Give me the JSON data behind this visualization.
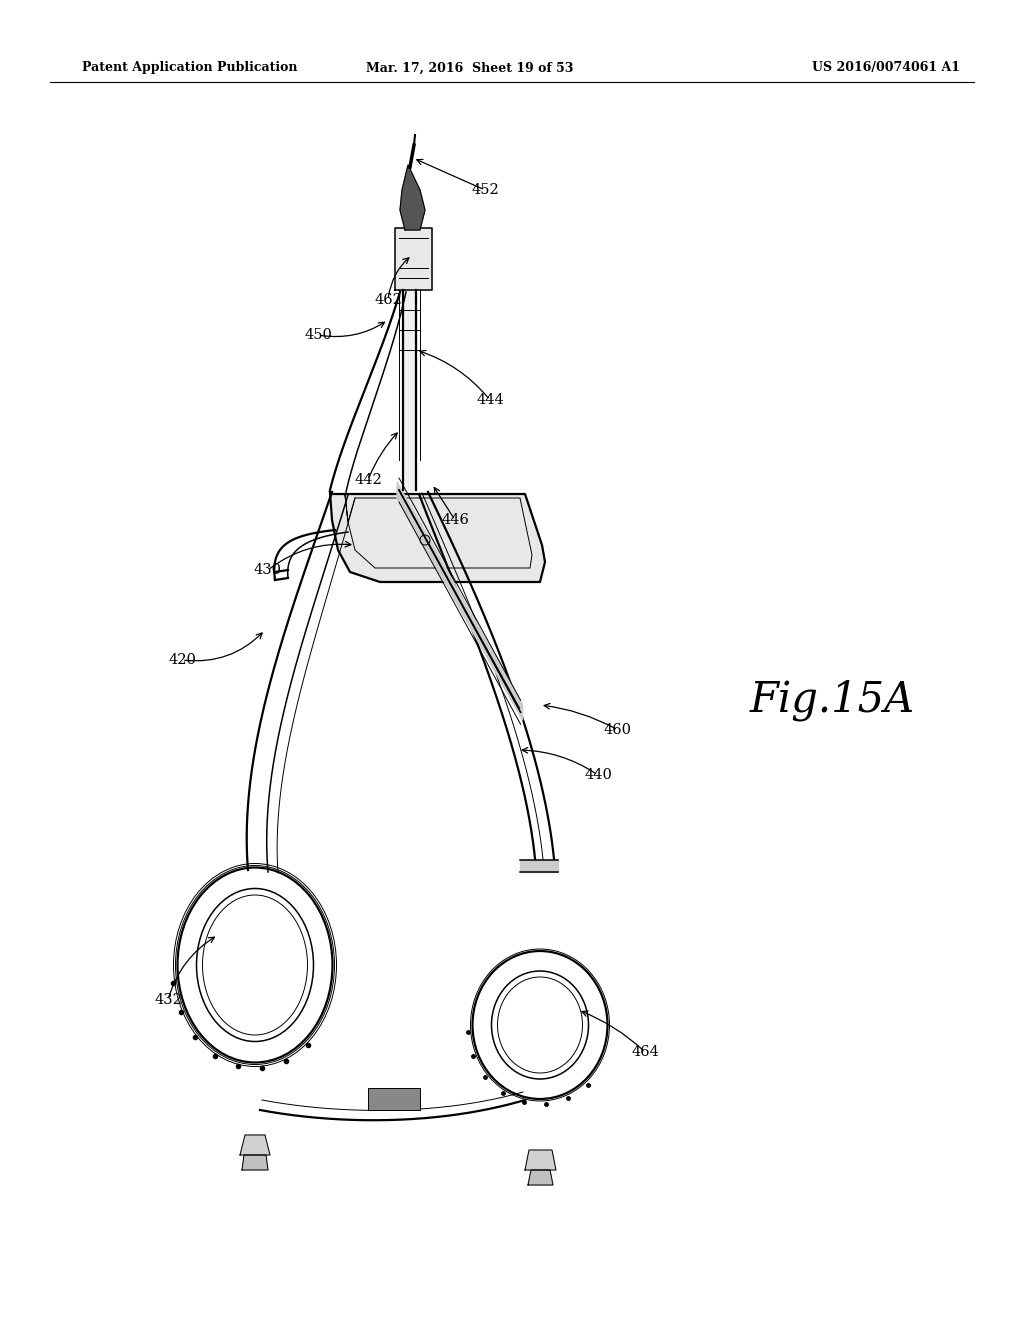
{
  "background_color": "#ffffff",
  "header_left": "Patent Application Publication",
  "header_center": "Mar. 17, 2016  Sheet 19 of 53",
  "header_right": "US 2016/0074061 A1",
  "fig_label": "Fig.15A",
  "header_fontsize": 9,
  "fig_label_fontsize": 30,
  "label_fontsize": 10.5,
  "lw_main": 1.6,
  "lw_med": 1.1,
  "lw_thin": 0.7
}
